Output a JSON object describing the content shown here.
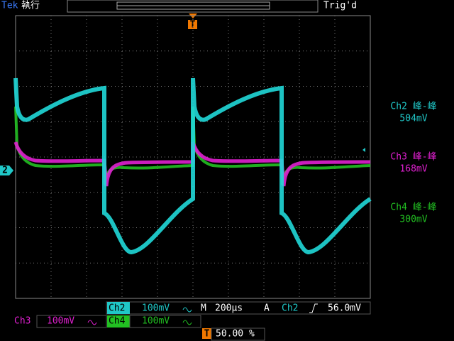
{
  "header": {
    "brand": "Tek",
    "status": "執行",
    "trigger_state": "Trig'd"
  },
  "trigger_marker": "T",
  "channel_marker": "2",
  "measurements": [
    {
      "label": "Ch2 峰-峰",
      "value": "504mV"
    },
    {
      "label": "Ch3 峰-峰",
      "value": "168mV"
    },
    {
      "label": "Ch4 峰-峰",
      "value": "300mV"
    }
  ],
  "footer": {
    "ch2": {
      "name": "Ch2",
      "scale": "100mV"
    },
    "ch3": {
      "name": "Ch3",
      "scale": "100mV"
    },
    "ch4": {
      "name": "Ch4",
      "scale": "100mV"
    },
    "timebase": {
      "label": "M",
      "value": "200µs"
    },
    "trigger": {
      "mode": "A",
      "source": "Ch2",
      "level": "56.0mV"
    },
    "position": "50.00 %"
  }
}
